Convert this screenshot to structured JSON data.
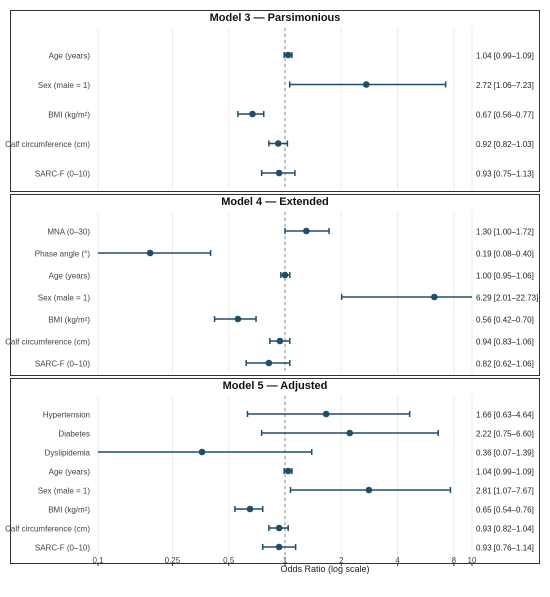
{
  "colors": {
    "point": "#1f4e6b",
    "grid": "#ebebeb",
    "frame": "#333333",
    "ref_line": "#888888",
    "text": "#444444"
  },
  "chart_data": {
    "type": "forest",
    "xlabel": "Odds Ratio (log scale)",
    "x_scale": "log",
    "xlim": [
      0.1,
      10
    ],
    "xticks": [
      {
        "value": 0.1,
        "label": "0.1"
      },
      {
        "value": 0.25,
        "label": "0.25"
      },
      {
        "value": 0.5,
        "label": "0.5"
      },
      {
        "value": 1,
        "label": "1"
      },
      {
        "value": 2,
        "label": "2"
      },
      {
        "value": 4,
        "label": "4"
      },
      {
        "value": 8,
        "label": "8"
      },
      {
        "value": 10,
        "label": "10"
      }
    ],
    "reference_line": 1,
    "panels": [
      {
        "title": "Model 3 — Parsimonious",
        "rows": [
          {
            "label": "Age (years)",
            "or": 1.04,
            "lo": 0.99,
            "hi": 1.09,
            "text": "1.04 [0.99–1.09]"
          },
          {
            "label": "Sex (male = 1)",
            "or": 2.72,
            "lo": 1.06,
            "hi": 7.23,
            "text": "2.72 [1.06–7.23]"
          },
          {
            "label": "BMI (kg/m²)",
            "or": 0.67,
            "lo": 0.56,
            "hi": 0.77,
            "text": "0.67 [0.56–0.77]"
          },
          {
            "label": "Calf circumference (cm)",
            "or": 0.92,
            "lo": 0.82,
            "hi": 1.03,
            "text": "0.92 [0.82–1.03]"
          },
          {
            "label": "SARC-F (0–10)",
            "or": 0.93,
            "lo": 0.75,
            "hi": 1.13,
            "text": "0.93 [0.75–1.13]"
          }
        ]
      },
      {
        "title": "Model 4 — Extended",
        "rows": [
          {
            "label": "MNA (0–30)",
            "or": 1.3,
            "lo": 1.0,
            "hi": 1.72,
            "text": "1.30 [1.00–1.72]"
          },
          {
            "label": "Phase angle (°)",
            "or": 0.19,
            "lo": 0.08,
            "hi": 0.4,
            "text": "0.19 [0.08–0.40]"
          },
          {
            "label": "Age (years)",
            "or": 1.0,
            "lo": 0.95,
            "hi": 1.06,
            "text": "1.00 [0.95–1.06]"
          },
          {
            "label": "Sex (male = 1)",
            "or": 6.29,
            "lo": 2.01,
            "hi": 22.73,
            "text": "6.29 [2.01–22.73]"
          },
          {
            "label": "BMI (kg/m²)",
            "or": 0.56,
            "lo": 0.42,
            "hi": 0.7,
            "text": "0.56 [0.42–0.70]"
          },
          {
            "label": "Calf circumference (cm)",
            "or": 0.94,
            "lo": 0.83,
            "hi": 1.06,
            "text": "0.94 [0.83–1.06]"
          },
          {
            "label": "SARC-F (0–10)",
            "or": 0.82,
            "lo": 0.62,
            "hi": 1.06,
            "text": "0.82 [0.62–1.06]"
          }
        ]
      },
      {
        "title": "Model 5 — Adjusted",
        "rows": [
          {
            "label": "Hypertension",
            "or": 1.66,
            "lo": 0.63,
            "hi": 4.64,
            "text": "1.66 [0.63–4.64]"
          },
          {
            "label": "Diabetes",
            "or": 2.22,
            "lo": 0.75,
            "hi": 6.6,
            "text": "2.22 [0.75–6.60]"
          },
          {
            "label": "Dyslipidemia",
            "or": 0.36,
            "lo": 0.07,
            "hi": 1.39,
            "text": "0.36 [0.07–1.39]"
          },
          {
            "label": "Age (years)",
            "or": 1.04,
            "lo": 0.99,
            "hi": 1.09,
            "text": "1.04 [0.99–1.09]"
          },
          {
            "label": "Sex (male = 1)",
            "or": 2.81,
            "lo": 1.07,
            "hi": 7.67,
            "text": "2.81 [1.07–7.67]"
          },
          {
            "label": "BMI (kg/m²)",
            "or": 0.65,
            "lo": 0.54,
            "hi": 0.76,
            "text": "0.65 [0.54–0.76]"
          },
          {
            "label": "Calf circumference (cm)",
            "or": 0.93,
            "lo": 0.82,
            "hi": 1.04,
            "text": "0.93 [0.82–1.04]"
          },
          {
            "label": "SARC-F (0–10)",
            "or": 0.93,
            "lo": 0.76,
            "hi": 1.14,
            "text": "0.93 [0.76–1.14]"
          }
        ]
      }
    ]
  }
}
